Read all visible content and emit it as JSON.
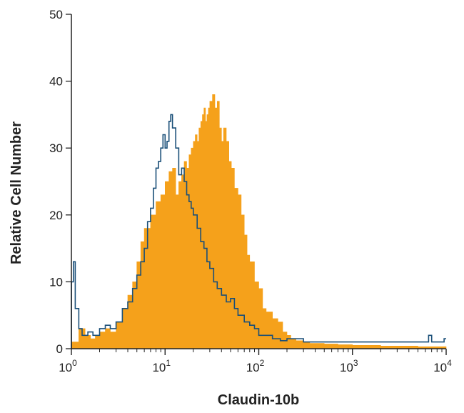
{
  "chart_data": {
    "type": "area",
    "xlabel": "Claudin-10b",
    "ylabel": "Relative Cell Number",
    "xscale": "log",
    "xlim": [
      1,
      10000
    ],
    "ylim": [
      0,
      50
    ],
    "grid": false,
    "legend": "none",
    "x_ticks": [
      {
        "value": 1,
        "base": "10",
        "exp": "0"
      },
      {
        "value": 10,
        "base": "10",
        "exp": "1"
      },
      {
        "value": 100,
        "base": "10",
        "exp": "2"
      },
      {
        "value": 1000,
        "base": "10",
        "exp": "3"
      },
      {
        "value": 10000,
        "base": "10",
        "exp": "4"
      }
    ],
    "y_ticks": [
      "0",
      "10",
      "20",
      "30",
      "40",
      "50"
    ],
    "series": [
      {
        "style": "filled",
        "color": "#f5a11b",
        "x": [
          1,
          1.2,
          1.4,
          1.6,
          1.8,
          2,
          2.3,
          2.6,
          3,
          3.5,
          4,
          4.5,
          5,
          5.5,
          6,
          7,
          8,
          9,
          10,
          11,
          12,
          13,
          14,
          15,
          16,
          17,
          18,
          19,
          20,
          21,
          22,
          23,
          24,
          25,
          26,
          27,
          28,
          29,
          30,
          32,
          34,
          36,
          38,
          40,
          42,
          45,
          48,
          51,
          55,
          60,
          65,
          70,
          75,
          80,
          90,
          100,
          110,
          120,
          140,
          160,
          180,
          200,
          220,
          250,
          300,
          350,
          400,
          500,
          700,
          1000,
          1500,
          2000,
          3000,
          5000,
          7000,
          10000
        ],
        "values": [
          1,
          3,
          2,
          1.5,
          2,
          2.5,
          3,
          2.5,
          4,
          6,
          8,
          10,
          13,
          16,
          18,
          20,
          22,
          23,
          25,
          26.5,
          27,
          23,
          25,
          26,
          28,
          27,
          29,
          30,
          31,
          32,
          31,
          33,
          34,
          35,
          36,
          34,
          35,
          36,
          37,
          38,
          36,
          37,
          33,
          31,
          33,
          31,
          28,
          27,
          24,
          23,
          20,
          17,
          14,
          13,
          10,
          9,
          6,
          5.5,
          4.5,
          4,
          2.5,
          2,
          1.5,
          1.2,
          1,
          0.8,
          0.8,
          0.7,
          0.6,
          0.5,
          0.5,
          0.4,
          0.4,
          0.3,
          0.3,
          0.2
        ]
      },
      {
        "style": "outline",
        "color": "#1a4f78",
        "x": [
          1,
          1.05,
          1.1,
          1.2,
          1.3,
          1.5,
          1.7,
          2,
          2.3,
          2.6,
          3,
          3.5,
          4,
          4.5,
          5,
          5.5,
          6,
          6.5,
          7,
          7.5,
          8,
          8.5,
          9,
          9.5,
          10,
          10.5,
          11,
          11.5,
          12,
          13,
          14,
          15,
          16,
          17,
          18,
          19,
          20,
          22,
          24,
          26,
          28,
          30,
          33,
          36,
          40,
          45,
          50,
          55,
          60,
          70,
          80,
          90,
          100,
          120,
          140,
          170,
          200,
          300,
          500,
          800,
          1000,
          2000,
          3000,
          5000,
          6500,
          7000,
          8000,
          9500
        ],
        "values": [
          10,
          13,
          6,
          3,
          2,
          2.5,
          2,
          3,
          3.5,
          3,
          4,
          6,
          7,
          9,
          11,
          13,
          15,
          19,
          21,
          24,
          27,
          28,
          30,
          32,
          30,
          31,
          34,
          35,
          33,
          30,
          26,
          27,
          25,
          23,
          22,
          21,
          20,
          18,
          16,
          15,
          13,
          12,
          10,
          9,
          8,
          7,
          7.5,
          6,
          5,
          4,
          3.5,
          3,
          2,
          2,
          1.5,
          1.2,
          1.5,
          1,
          1,
          1,
          1,
          1,
          1,
          1,
          2,
          1,
          1,
          1.5
        ]
      }
    ]
  }
}
